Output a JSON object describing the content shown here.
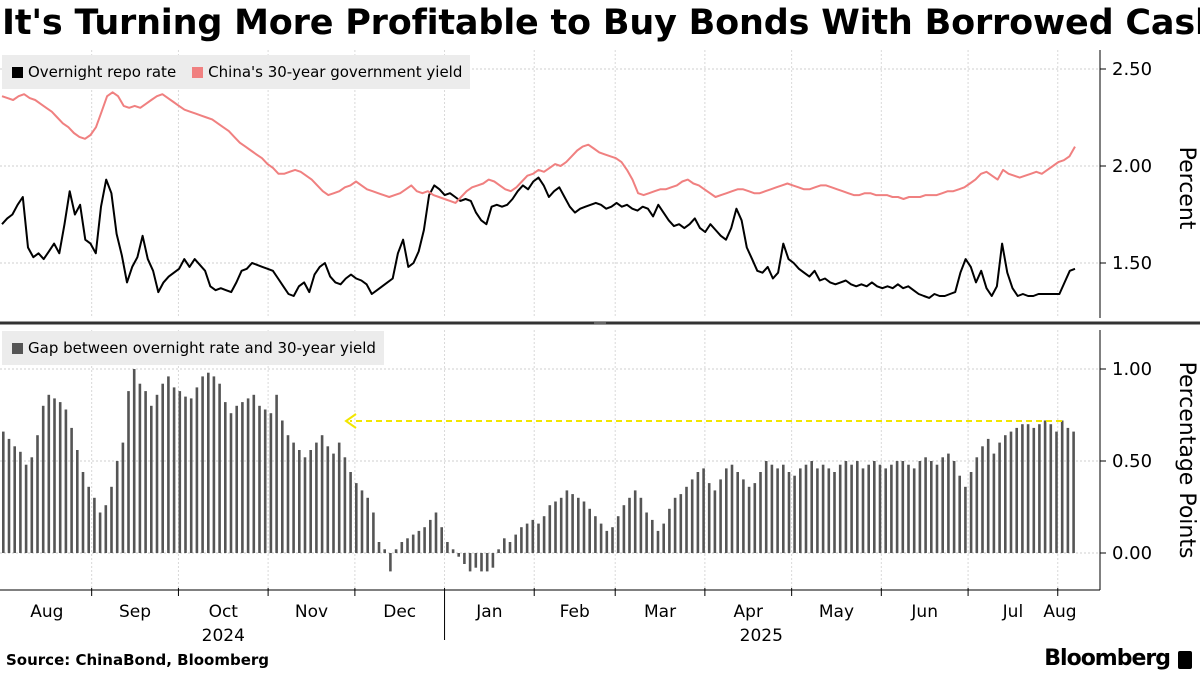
{
  "title": "It's Turning More Profitable to Buy Bonds With Borrowed Cash",
  "source": "Source: ChinaBond, Bloomberg",
  "brand": "Bloomberg",
  "chart_data": [
    {
      "type": "line",
      "ylabel": "Percent",
      "ylim": [
        1.25,
        2.55
      ],
      "yticks": [
        "2.50",
        "2.00",
        "1.50"
      ],
      "grid": true,
      "legend_position": "top-left",
      "x_start": "2024-08-01",
      "x_end": "2025-08-08",
      "series": [
        {
          "name": "Overnight repo rate",
          "color": "#000000",
          "values": [
            1.7,
            1.73,
            1.75,
            1.8,
            1.84,
            1.58,
            1.53,
            1.55,
            1.52,
            1.56,
            1.6,
            1.55,
            1.7,
            1.87,
            1.75,
            1.8,
            1.62,
            1.6,
            1.55,
            1.79,
            1.93,
            1.86,
            1.65,
            1.54,
            1.4,
            1.48,
            1.53,
            1.64,
            1.52,
            1.46,
            1.35,
            1.4,
            1.43,
            1.45,
            1.47,
            1.52,
            1.48,
            1.52,
            1.49,
            1.46,
            1.38,
            1.36,
            1.37,
            1.36,
            1.35,
            1.4,
            1.46,
            1.47,
            1.5,
            1.49,
            1.48,
            1.47,
            1.46,
            1.42,
            1.38,
            1.34,
            1.33,
            1.38,
            1.4,
            1.35,
            1.44,
            1.48,
            1.5,
            1.43,
            1.4,
            1.39,
            1.42,
            1.44,
            1.42,
            1.41,
            1.39,
            1.34,
            1.36,
            1.38,
            1.4,
            1.42,
            1.55,
            1.62,
            1.48,
            1.5,
            1.56,
            1.67,
            1.85,
            1.9,
            1.88,
            1.85,
            1.86,
            1.84,
            1.82,
            1.83,
            1.82,
            1.76,
            1.72,
            1.7,
            1.79,
            1.8,
            1.79,
            1.8,
            1.83,
            1.87,
            1.9,
            1.88,
            1.92,
            1.94,
            1.9,
            1.84,
            1.87,
            1.89,
            1.84,
            1.79,
            1.76,
            1.78,
            1.79,
            1.8,
            1.81,
            1.8,
            1.78,
            1.79,
            1.81,
            1.79,
            1.8,
            1.78,
            1.77,
            1.79,
            1.78,
            1.74,
            1.8,
            1.76,
            1.72,
            1.69,
            1.7,
            1.68,
            1.7,
            1.73,
            1.68,
            1.66,
            1.7,
            1.67,
            1.64,
            1.62,
            1.68,
            1.78,
            1.72,
            1.58,
            1.52,
            1.46,
            1.45,
            1.48,
            1.42,
            1.45,
            1.6,
            1.52,
            1.5,
            1.47,
            1.45,
            1.43,
            1.46,
            1.41,
            1.42,
            1.4,
            1.39,
            1.4,
            1.41,
            1.39,
            1.38,
            1.39,
            1.38,
            1.4,
            1.38,
            1.37,
            1.38,
            1.37,
            1.39,
            1.37,
            1.38,
            1.36,
            1.34,
            1.33,
            1.32,
            1.34,
            1.33,
            1.33,
            1.34,
            1.35,
            1.45,
            1.52,
            1.48,
            1.4,
            1.46,
            1.37,
            1.33,
            1.38,
            1.6,
            1.45,
            1.37,
            1.33,
            1.34,
            1.33,
            1.33,
            1.34,
            1.34,
            1.34,
            1.34,
            1.34,
            1.4,
            1.46,
            1.47
          ]
        },
        {
          "name": "China's 30-year government yield",
          "color": "#f08080",
          "values": [
            2.36,
            2.35,
            2.34,
            2.36,
            2.37,
            2.35,
            2.34,
            2.32,
            2.3,
            2.28,
            2.25,
            2.22,
            2.2,
            2.17,
            2.15,
            2.14,
            2.16,
            2.2,
            2.28,
            2.36,
            2.38,
            2.36,
            2.31,
            2.3,
            2.31,
            2.3,
            2.32,
            2.34,
            2.36,
            2.37,
            2.35,
            2.33,
            2.31,
            2.29,
            2.28,
            2.27,
            2.26,
            2.25,
            2.24,
            2.22,
            2.2,
            2.18,
            2.15,
            2.12,
            2.1,
            2.08,
            2.06,
            2.04,
            2.01,
            1.99,
            1.96,
            1.96,
            1.97,
            1.98,
            1.97,
            1.95,
            1.93,
            1.9,
            1.87,
            1.85,
            1.86,
            1.87,
            1.89,
            1.9,
            1.92,
            1.9,
            1.88,
            1.87,
            1.86,
            1.85,
            1.84,
            1.85,
            1.86,
            1.88,
            1.9,
            1.87,
            1.86,
            1.87,
            1.85,
            1.84,
            1.83,
            1.82,
            1.81,
            1.84,
            1.87,
            1.89,
            1.9,
            1.91,
            1.93,
            1.92,
            1.9,
            1.88,
            1.87,
            1.89,
            1.92,
            1.95,
            1.96,
            1.98,
            1.97,
            1.99,
            2.01,
            2.0,
            2.02,
            2.05,
            2.08,
            2.1,
            2.11,
            2.09,
            2.07,
            2.06,
            2.05,
            2.04,
            2.02,
            1.98,
            1.93,
            1.86,
            1.85,
            1.86,
            1.87,
            1.88,
            1.88,
            1.89,
            1.9,
            1.92,
            1.93,
            1.91,
            1.9,
            1.88,
            1.86,
            1.84,
            1.85,
            1.86,
            1.87,
            1.88,
            1.88,
            1.87,
            1.86,
            1.86,
            1.87,
            1.88,
            1.89,
            1.9,
            1.91,
            1.9,
            1.89,
            1.88,
            1.88,
            1.89,
            1.9,
            1.9,
            1.89,
            1.88,
            1.87,
            1.86,
            1.85,
            1.85,
            1.86,
            1.86,
            1.85,
            1.85,
            1.85,
            1.84,
            1.84,
            1.83,
            1.84,
            1.84,
            1.84,
            1.85,
            1.85,
            1.85,
            1.86,
            1.87,
            1.87,
            1.88,
            1.89,
            1.91,
            1.93,
            1.96,
            1.97,
            1.95,
            1.93,
            1.98,
            1.96,
            1.95,
            1.94,
            1.95,
            1.96,
            1.97,
            1.96,
            1.98,
            2.0,
            2.02,
            2.03,
            2.05,
            2.1
          ]
        }
      ]
    },
    {
      "type": "bar",
      "ylabel": "Percentage Points",
      "ylim": [
        -0.1,
        1.0
      ],
      "yticks": [
        "1.00",
        "0.50",
        "0.00"
      ],
      "grid": true,
      "legend_position": "top-left",
      "annotation": "dashed yellow arrow at the latest gap level pointing back to Nov 2024",
      "series": [
        {
          "name": "Gap between overnight rate and 30-year yield",
          "color": "#555555",
          "values": [
            0.66,
            0.62,
            0.58,
            0.55,
            0.48,
            0.52,
            0.64,
            0.8,
            0.86,
            0.84,
            0.82,
            0.78,
            0.68,
            0.56,
            0.44,
            0.36,
            0.3,
            0.22,
            0.26,
            0.36,
            0.5,
            0.6,
            0.88,
            1.0,
            0.92,
            0.88,
            0.8,
            0.86,
            0.92,
            0.96,
            0.9,
            0.88,
            0.85,
            0.84,
            0.9,
            0.96,
            0.98,
            0.96,
            0.92,
            0.82,
            0.76,
            0.8,
            0.82,
            0.84,
            0.86,
            0.8,
            0.78,
            0.76,
            0.86,
            0.72,
            0.64,
            0.6,
            0.56,
            0.52,
            0.56,
            0.6,
            0.64,
            0.58,
            0.54,
            0.6,
            0.52,
            0.44,
            0.38,
            0.34,
            0.3,
            0.22,
            0.06,
            0.02,
            -0.1,
            0.02,
            0.06,
            0.08,
            0.1,
            0.12,
            0.14,
            0.18,
            0.22,
            0.14,
            0.06,
            0.02,
            -0.02,
            -0.06,
            -0.1,
            -0.08,
            -0.1,
            -0.1,
            -0.08,
            0.02,
            0.08,
            0.06,
            0.1,
            0.14,
            0.16,
            0.18,
            0.16,
            0.2,
            0.26,
            0.28,
            0.3,
            0.34,
            0.32,
            0.3,
            0.28,
            0.24,
            0.2,
            0.16,
            0.12,
            0.14,
            0.2,
            0.26,
            0.3,
            0.34,
            0.3,
            0.22,
            0.18,
            0.12,
            0.16,
            0.24,
            0.3,
            0.32,
            0.36,
            0.4,
            0.44,
            0.46,
            0.38,
            0.34,
            0.4,
            0.46,
            0.48,
            0.44,
            0.4,
            0.36,
            0.38,
            0.44,
            0.5,
            0.48,
            0.46,
            0.48,
            0.44,
            0.42,
            0.46,
            0.48,
            0.5,
            0.46,
            0.48,
            0.46,
            0.44,
            0.48,
            0.5,
            0.48,
            0.5,
            0.46,
            0.48,
            0.5,
            0.48,
            0.46,
            0.48,
            0.5,
            0.5,
            0.48,
            0.46,
            0.5,
            0.52,
            0.5,
            0.48,
            0.52,
            0.54,
            0.5,
            0.42,
            0.36,
            0.44,
            0.52,
            0.58,
            0.62,
            0.54,
            0.6,
            0.64,
            0.66,
            0.68,
            0.7,
            0.7,
            0.68,
            0.7,
            0.72,
            0.7,
            0.66,
            0.72,
            0.68,
            0.66
          ]
        }
      ]
    }
  ],
  "x_axis": {
    "months": [
      "Aug",
      "Sep",
      "Oct",
      "Nov",
      "Dec",
      "Jan",
      "Feb",
      "Mar",
      "Apr",
      "May",
      "Jun",
      "Jul",
      "Aug"
    ],
    "years": [
      "2024",
      "2025"
    ]
  },
  "legend_swatches": {
    "repo": "#000000",
    "yield": "#f08080",
    "gap": "#555555"
  }
}
